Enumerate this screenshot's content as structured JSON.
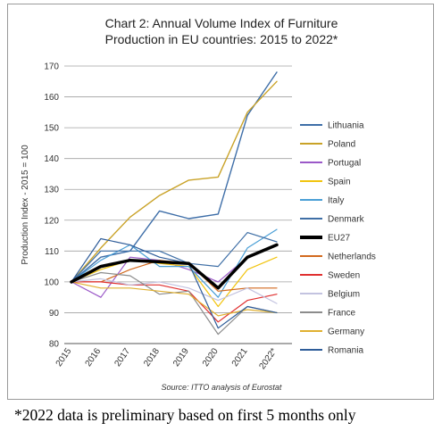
{
  "chart_data": {
    "type": "line",
    "title_lines": [
      "Chart 2: Annual Volume Index of Furniture",
      "Production in EU countries: 2015 to 2022*"
    ],
    "ylabel": "Production Index - 2015 = 100",
    "x": [
      "2015",
      "2016",
      "2017",
      "2018",
      "2019",
      "2020",
      "2021",
      "2022*"
    ],
    "ylim": [
      80,
      170
    ],
    "yticks": [
      80,
      90,
      100,
      110,
      120,
      130,
      140,
      150,
      160,
      170
    ],
    "grid": "horizontal",
    "legend_position": "right",
    "source": "Source: ITTO analysis of Eurostat",
    "series": [
      {
        "name": "Lithuania",
        "color": "#3e6ea8",
        "width": 1.4,
        "values": [
          100,
          108,
          110,
          123,
          120.5,
          122,
          154,
          168
        ]
      },
      {
        "name": "Poland",
        "color": "#c9a227",
        "width": 1.4,
        "values": [
          100,
          111,
          121,
          128,
          133,
          134,
          155,
          165
        ]
      },
      {
        "name": "Portugal",
        "color": "#9b59c8",
        "width": 1.2,
        "values": [
          100,
          95,
          108,
          107,
          104,
          100,
          108,
          112
        ]
      },
      {
        "name": "Spain",
        "color": "#f1c40f",
        "width": 1.2,
        "values": [
          100,
          104,
          107,
          106,
          105,
          92,
          104,
          108
        ]
      },
      {
        "name": "Italy",
        "color": "#4a9fd6",
        "width": 1.2,
        "values": [
          100,
          107,
          112,
          105,
          105,
          95,
          111,
          117
        ]
      },
      {
        "name": "Denmark",
        "color": "#3f6fa6",
        "width": 1.2,
        "values": [
          100,
          110,
          110,
          110,
          106,
          105,
          116,
          113
        ]
      },
      {
        "name": "EU27",
        "color": "#000000",
        "width": 3.5,
        "values": [
          100,
          105,
          107,
          106.5,
          106,
          98,
          108,
          112
        ]
      },
      {
        "name": "Netherlands",
        "color": "#d2691e",
        "width": 1.2,
        "values": [
          100,
          100,
          104,
          107,
          106,
          97,
          98,
          98
        ]
      },
      {
        "name": "Sweden",
        "color": "#e03030",
        "width": 1.2,
        "values": [
          100,
          100,
          99,
          99,
          97,
          87,
          94,
          96
        ]
      },
      {
        "name": "Belgium",
        "color": "#c3c3e0",
        "width": 1.2,
        "values": [
          100,
          101,
          99,
          100,
          98,
          94,
          98,
          93
        ]
      },
      {
        "name": "France",
        "color": "#8c8c8c",
        "width": 1.2,
        "values": [
          100,
          103,
          102,
          96,
          97,
          83,
          92,
          90
        ]
      },
      {
        "name": "Germany",
        "color": "#e0b030",
        "width": 1.2,
        "values": [
          100,
          98,
          98,
          97,
          96,
          89,
          91,
          90
        ]
      },
      {
        "name": "Romania",
        "color": "#2e5c99",
        "width": 1.2,
        "values": [
          100,
          114,
          112,
          108,
          106,
          85,
          92,
          90
        ]
      }
    ]
  },
  "footnote": "*2022 data is preliminary based on first 5 months only"
}
